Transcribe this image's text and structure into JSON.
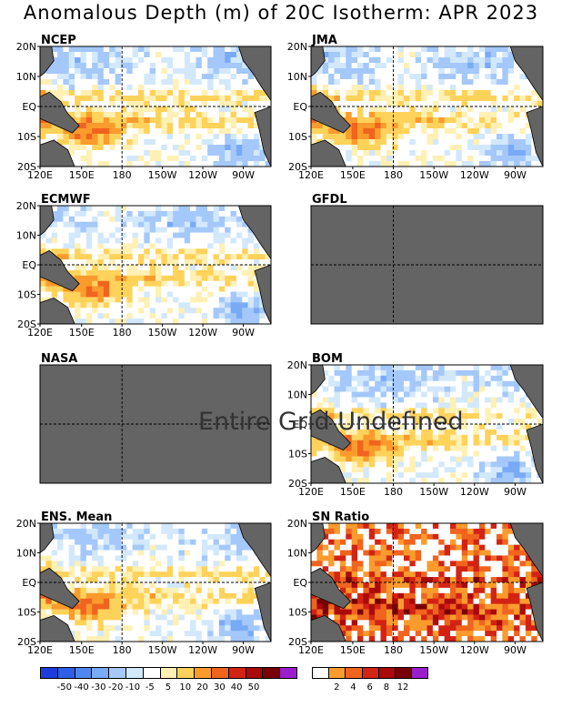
{
  "title": "Anomalous Depth (m) of 20C Isotherm: APR 2023",
  "missing_message": "Entire Grid Undefined",
  "chart_data": {
    "type": "heatmap",
    "title": "Anomalous Depth (m) of 20C Isotherm: APR 2023",
    "lat_ticks": [
      "20N",
      "10N",
      "EQ",
      "10S",
      "20S"
    ],
    "lon_ticks": [
      "120E",
      "150E",
      "180",
      "150W",
      "120W",
      "90W"
    ],
    "panels": [
      {
        "name": "NCEP",
        "status": "data",
        "variable": "anomaly"
      },
      {
        "name": "JMA",
        "status": "data",
        "variable": "anomaly"
      },
      {
        "name": "ECMWF",
        "status": "data",
        "variable": "anomaly"
      },
      {
        "name": "GFDL",
        "status": "undefined",
        "variable": "anomaly"
      },
      {
        "name": "NASA",
        "status": "undefined",
        "variable": "anomaly"
      },
      {
        "name": "BOM",
        "status": "data",
        "variable": "anomaly"
      },
      {
        "name": "ENS. Mean",
        "status": "data",
        "variable": "anomaly"
      },
      {
        "name": "SN Ratio",
        "status": "data",
        "variable": "snr"
      }
    ],
    "anomaly_scale": {
      "colors": [
        "#1c3cdc",
        "#2f5fe6",
        "#4f87ef",
        "#78aaf5",
        "#a4c8fa",
        "#d2e8fc",
        "#ffffff",
        "#fff0b4",
        "#ffd25a",
        "#fa9b2d",
        "#f0641e",
        "#d22314",
        "#aa0a0a",
        "#780000",
        "#9b1ecd"
      ],
      "labels": [
        "-50",
        "-40",
        "-30",
        "-20",
        "-10",
        "-5",
        "5",
        "10",
        "20",
        "30",
        "40",
        "50"
      ]
    },
    "snr_scale": {
      "colors": [
        "#ffffff",
        "#fa9b2d",
        "#f0641e",
        "#d22314",
        "#aa0a0a",
        "#780000",
        "#9b1ecd"
      ],
      "labels": [
        "2",
        "4",
        "6",
        "8",
        "12"
      ]
    },
    "land_color": "#646464"
  }
}
